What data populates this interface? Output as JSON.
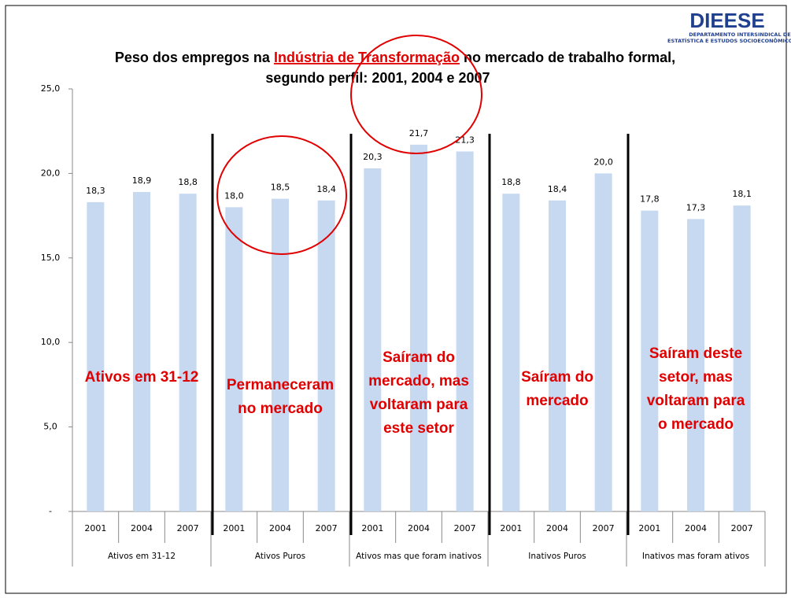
{
  "chart_data": {
    "type": "bar",
    "title": [
      "Peso dos empregos na",
      "Indústria de Transformação",
      "no mercado de trabalho formal,",
      "segundo perfil: 2001, 2004 e 2007"
    ],
    "logo": {
      "name": "DIEESE",
      "lines": [
        "DEPARTAMENTO INTERSINDICAL DE",
        "ESTATÍSTICA E ESTUDOS SOCIOECONÔMICOS"
      ]
    },
    "groups": [
      "Ativos em 31-12",
      "Ativos Puros",
      "Ativos mas que foram inativos",
      "Inativos Puros",
      "Inativos mas foram ativos"
    ],
    "categories": [
      "2001",
      "2004",
      "2007",
      "2001",
      "2004",
      "2007",
      "2001",
      "2004",
      "2007",
      "2001",
      "2004",
      "2007",
      "2001",
      "2004",
      "2007"
    ],
    "values": [
      18.3,
      18.9,
      18.8,
      18.0,
      18.5,
      18.4,
      20.3,
      21.7,
      21.3,
      18.8,
      18.4,
      20.0,
      17.8,
      17.3,
      18.1
    ],
    "value_labels": [
      "18,3",
      "18,9",
      "18,8",
      "18,0",
      "18,5",
      "18,4",
      "20,3",
      "21,7",
      "21,3",
      "18,8",
      "18,4",
      "20,0",
      "17,8",
      "17,3",
      "18,1"
    ],
    "color": "#c6d9f1",
    "ylim": [
      0,
      25
    ],
    "yticks": [
      {
        "value": 0,
        "label": "-"
      },
      {
        "value": 5,
        "label": "5,0"
      },
      {
        "value": 10,
        "label": "10,0"
      },
      {
        "value": 15,
        "label": "15,0"
      },
      {
        "value": 20,
        "label": "20,0"
      },
      {
        "value": 25,
        "label": "25,0"
      }
    ],
    "annotations": [
      [
        "Ativos em 31-12"
      ],
      [
        "Permaneceram",
        "no mercado"
      ],
      [
        "Saíram do",
        "mercado, mas",
        "voltaram para",
        "este setor"
      ],
      [
        "Saíram do",
        "mercado"
      ],
      [
        "Saíram deste",
        "setor, mas",
        "voltaram para",
        "o mercado"
      ]
    ]
  }
}
